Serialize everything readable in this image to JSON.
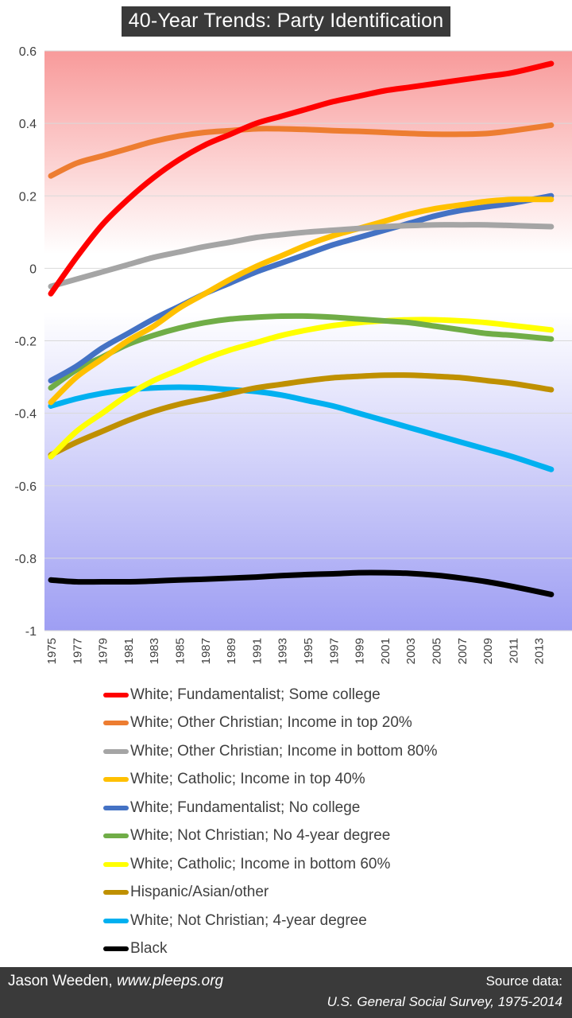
{
  "title": "40-Year Trends: Party Identification",
  "footer": {
    "author": "Jason Weeden, ",
    "site": "www.pleeps.org",
    "source_label": "Source data:",
    "source_name": "U.S. General Social Survey, 1975-2014"
  },
  "chart_data": {
    "type": "line",
    "title": "40-Year Trends: Party Identification",
    "xlabel": "",
    "ylabel": "",
    "ylim": [
      -1,
      0.6
    ],
    "xlim": [
      1975,
      2014
    ],
    "y_ticks": [
      0.6,
      0.4,
      0.2,
      0,
      -0.2,
      -0.4,
      -0.6,
      -0.8,
      -1
    ],
    "y_tick_labels": [
      "0.6",
      "0.4",
      "0.2",
      "0",
      "-0.2",
      "-0.4",
      "-0.6",
      "-0.8",
      "-1"
    ],
    "x_tick_labels": [
      "1975",
      "1977",
      "1979",
      "1981",
      "1983",
      "1985",
      "1987",
      "1989",
      "1991",
      "1993",
      "1995",
      "1997",
      "1999",
      "2001",
      "2003",
      "2005",
      "2007",
      "2009",
      "2011",
      "2013"
    ],
    "grid": true,
    "background": "gradient red (top) to white (0) to blue (bottom)",
    "legend_placement": "bottom",
    "x": [
      1975,
      1977,
      1979,
      1981,
      1983,
      1985,
      1987,
      1989,
      1991,
      1993,
      1995,
      1997,
      1999,
      2001,
      2003,
      2005,
      2007,
      2009,
      2011,
      2014
    ],
    "series": [
      {
        "name": "White; Fundamentalist; Some college",
        "color": "#ff0000",
        "values": [
          -0.07,
          0.03,
          0.12,
          0.19,
          0.25,
          0.3,
          0.34,
          0.37,
          0.4,
          0.42,
          0.44,
          0.46,
          0.475,
          0.49,
          0.5,
          0.51,
          0.52,
          0.53,
          0.54,
          0.565
        ]
      },
      {
        "name": "White; Other Christian; Income in top 20%",
        "color": "#ed7d31",
        "values": [
          0.255,
          0.29,
          0.31,
          0.33,
          0.35,
          0.365,
          0.375,
          0.38,
          0.385,
          0.385,
          0.383,
          0.38,
          0.378,
          0.375,
          0.372,
          0.37,
          0.37,
          0.372,
          0.38,
          0.395
        ]
      },
      {
        "name": "White; Other Christian; Income in bottom 80%",
        "color": "#a5a5a5",
        "values": [
          -0.05,
          -0.03,
          -0.01,
          0.01,
          0.03,
          0.045,
          0.06,
          0.072,
          0.085,
          0.093,
          0.1,
          0.105,
          0.11,
          0.115,
          0.118,
          0.12,
          0.12,
          0.12,
          0.118,
          0.115
        ]
      },
      {
        "name": "White; Catholic; Income in top 40%",
        "color": "#ffc000",
        "values": [
          -0.37,
          -0.3,
          -0.25,
          -0.2,
          -0.16,
          -0.11,
          -0.07,
          -0.03,
          0.005,
          0.035,
          0.065,
          0.09,
          0.11,
          0.13,
          0.15,
          0.165,
          0.175,
          0.185,
          0.19,
          0.19
        ]
      },
      {
        "name": "White; Fundamentalist; No college",
        "color": "#4472c4",
        "values": [
          -0.31,
          -0.27,
          -0.22,
          -0.18,
          -0.14,
          -0.105,
          -0.07,
          -0.04,
          -0.01,
          0.015,
          0.04,
          0.065,
          0.085,
          0.105,
          0.125,
          0.145,
          0.16,
          0.17,
          0.18,
          0.2
        ]
      },
      {
        "name": "White; Not Christian; No 4-year degree",
        "color": "#70ad47",
        "values": [
          -0.33,
          -0.28,
          -0.245,
          -0.21,
          -0.185,
          -0.165,
          -0.15,
          -0.14,
          -0.135,
          -0.132,
          -0.132,
          -0.135,
          -0.14,
          -0.145,
          -0.15,
          -0.16,
          -0.17,
          -0.18,
          -0.185,
          -0.195
        ]
      },
      {
        "name": "White; Catholic; Income in bottom 60%",
        "color": "#ffff00",
        "values": [
          -0.52,
          -0.45,
          -0.4,
          -0.35,
          -0.31,
          -0.28,
          -0.25,
          -0.225,
          -0.205,
          -0.185,
          -0.17,
          -0.158,
          -0.15,
          -0.145,
          -0.142,
          -0.142,
          -0.145,
          -0.15,
          -0.158,
          -0.17
        ]
      },
      {
        "name": "Hispanic/Asian/other",
        "color": "#bf9000",
        "values": [
          -0.515,
          -0.48,
          -0.45,
          -0.42,
          -0.395,
          -0.375,
          -0.36,
          -0.345,
          -0.33,
          -0.32,
          -0.31,
          -0.302,
          -0.298,
          -0.295,
          -0.295,
          -0.298,
          -0.302,
          -0.31,
          -0.318,
          -0.335
        ]
      },
      {
        "name": "White; Not Christian; 4-year degree",
        "color": "#00b0f0",
        "values": [
          -0.38,
          -0.36,
          -0.345,
          -0.335,
          -0.33,
          -0.328,
          -0.33,
          -0.335,
          -0.34,
          -0.35,
          -0.365,
          -0.38,
          -0.4,
          -0.42,
          -0.44,
          -0.46,
          -0.48,
          -0.5,
          -0.52,
          -0.555
        ]
      },
      {
        "name": "Black",
        "color": "#000000",
        "values": [
          -0.86,
          -0.865,
          -0.865,
          -0.865,
          -0.863,
          -0.86,
          -0.858,
          -0.855,
          -0.852,
          -0.848,
          -0.845,
          -0.843,
          -0.84,
          -0.84,
          -0.842,
          -0.847,
          -0.855,
          -0.865,
          -0.878,
          -0.9
        ]
      }
    ]
  }
}
